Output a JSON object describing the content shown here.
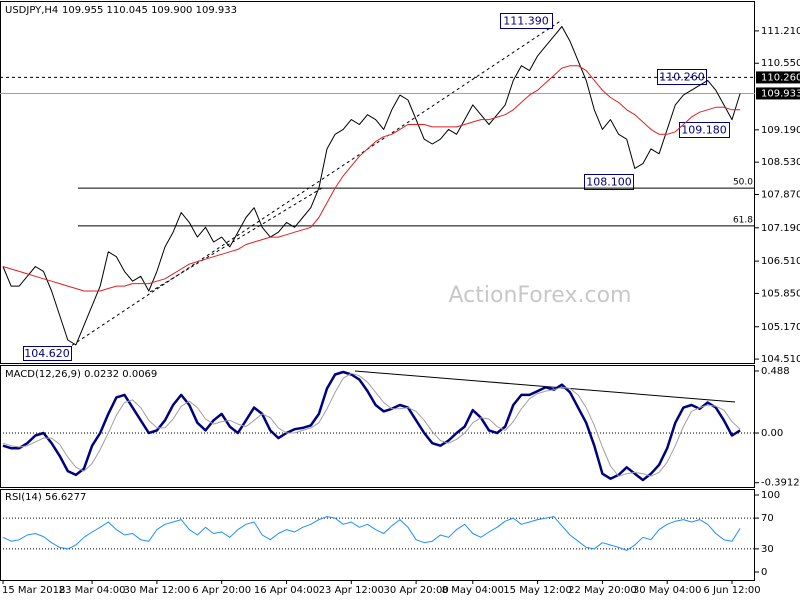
{
  "chart_data": [
    {
      "type": "line",
      "title": "USDJPY,H4",
      "subtitle": "109.955 110.045 109.900 109.933",
      "ylim": [
        104.43,
        111.8
      ],
      "yticks": [
        {
          "value": 111.21,
          "label": "111.210"
        },
        {
          "value": 110.55,
          "label": "110.550"
        },
        {
          "value": 109.19,
          "label": "109.190"
        },
        {
          "value": 108.53,
          "label": "108.530"
        },
        {
          "value": 107.87,
          "label": "107.870"
        },
        {
          "value": 107.19,
          "label": "107.190"
        },
        {
          "value": 106.51,
          "label": "106.510"
        },
        {
          "value": 105.85,
          "label": "105.850"
        },
        {
          "value": 105.17,
          "label": "105.170"
        },
        {
          "value": 104.51,
          "label": "104.510"
        }
      ],
      "series": [
        {
          "color": "#000000",
          "line_width": 1,
          "values": [
            106.4,
            106.0,
            106.0,
            106.2,
            106.4,
            106.3,
            105.9,
            105.4,
            104.9,
            104.8,
            105.2,
            105.6,
            106.0,
            106.7,
            106.6,
            106.3,
            106.1,
            106.2,
            105.9,
            106.3,
            106.8,
            107.1,
            107.5,
            107.3,
            107.0,
            107.2,
            106.9,
            107.0,
            106.8,
            107.1,
            107.4,
            107.6,
            107.2,
            107.0,
            107.1,
            107.3,
            107.2,
            107.4,
            107.6,
            108.0,
            108.8,
            109.1,
            109.2,
            109.4,
            109.3,
            109.5,
            109.4,
            109.2,
            109.6,
            109.9,
            109.8,
            109.4,
            109.0,
            108.9,
            109.0,
            109.2,
            109.1,
            109.4,
            109.7,
            109.5,
            109.3,
            109.5,
            109.7,
            110.2,
            110.5,
            110.4,
            110.7,
            110.9,
            111.1,
            111.3,
            111.0,
            110.6,
            110.2,
            109.6,
            109.2,
            109.4,
            109.1,
            109.0,
            108.4,
            108.5,
            108.8,
            108.7,
            109.2,
            109.7,
            109.9,
            110.0,
            110.1,
            110.2,
            110.0,
            109.7,
            109.4,
            109.933
          ]
        },
        {
          "color": "#e02020",
          "line_width": 1,
          "values": [
            106.4,
            106.35,
            106.3,
            106.25,
            106.2,
            106.15,
            106.1,
            106.05,
            106.0,
            105.95,
            105.9,
            105.9,
            105.9,
            105.95,
            106.0,
            106.0,
            106.05,
            106.05,
            106.05,
            106.1,
            106.15,
            106.25,
            106.35,
            106.45,
            106.5,
            106.55,
            106.6,
            106.65,
            106.7,
            106.75,
            106.85,
            106.9,
            106.95,
            107.0,
            107.0,
            107.05,
            107.1,
            107.15,
            107.2,
            107.4,
            107.7,
            108.0,
            108.25,
            108.45,
            108.65,
            108.8,
            108.95,
            109.05,
            109.1,
            109.2,
            109.3,
            109.3,
            109.3,
            109.25,
            109.25,
            109.25,
            109.25,
            109.3,
            109.35,
            109.4,
            109.4,
            109.45,
            109.5,
            109.6,
            109.75,
            109.9,
            110.0,
            110.15,
            110.3,
            110.45,
            110.5,
            110.5,
            110.4,
            110.2,
            110.0,
            109.85,
            109.75,
            109.6,
            109.5,
            109.35,
            109.2,
            109.1,
            109.1,
            109.15,
            109.3,
            109.45,
            109.55,
            109.6,
            109.65,
            109.65,
            109.6,
            109.6
          ]
        }
      ],
      "hlines": [
        {
          "value": 110.26,
          "label": "110.260",
          "style": "dashed"
        },
        {
          "value": 109.933,
          "label": "109.933",
          "style": "solid-gray"
        },
        {
          "value": 108.0,
          "label": "50.0",
          "style": "fib"
        },
        {
          "value": 107.23,
          "label": "61.8",
          "style": "fib"
        }
      ],
      "annotations": [
        "111.390",
        "110.260",
        "109.180",
        "108.100",
        "104.620"
      ],
      "watermark": "ActionForex.com"
    },
    {
      "type": "line",
      "title": "MACD(12,26,9) 0.0232 0.0069",
      "ylim": [
        -0.425,
        0.535
      ],
      "yticks": [
        0.488,
        {
          "value": 0,
          "label": "0.00"
        },
        -0.3912
      ],
      "series": [
        {
          "color": "#000080",
          "line_width": 2.5,
          "values": [
            -0.1,
            -0.12,
            -0.12,
            -0.08,
            -0.02,
            0.0,
            -0.08,
            -0.18,
            -0.3,
            -0.33,
            -0.28,
            -0.1,
            0.0,
            0.15,
            0.28,
            0.3,
            0.2,
            0.1,
            0.0,
            0.02,
            0.1,
            0.22,
            0.3,
            0.22,
            0.08,
            0.02,
            0.1,
            0.15,
            0.05,
            0.0,
            0.1,
            0.2,
            0.15,
            0.02,
            -0.04,
            0.0,
            0.03,
            0.04,
            0.06,
            0.15,
            0.35,
            0.46,
            0.48,
            0.46,
            0.42,
            0.33,
            0.22,
            0.17,
            0.19,
            0.22,
            0.2,
            0.1,
            0.0,
            -0.08,
            -0.1,
            -0.06,
            0.0,
            0.05,
            0.18,
            0.12,
            0.02,
            0.0,
            0.05,
            0.22,
            0.3,
            0.3,
            0.33,
            0.36,
            0.34,
            0.38,
            0.32,
            0.2,
            0.08,
            -0.1,
            -0.32,
            -0.36,
            -0.33,
            -0.27,
            -0.32,
            -0.37,
            -0.32,
            -0.25,
            -0.12,
            0.08,
            0.2,
            0.22,
            0.19,
            0.24,
            0.2,
            0.1,
            -0.02,
            0.02
          ]
        },
        {
          "color": "#a0a0a0",
          "line_width": 1,
          "values": [
            -0.08,
            -0.1,
            -0.11,
            -0.1,
            -0.07,
            -0.04,
            -0.04,
            -0.09,
            -0.19,
            -0.27,
            -0.3,
            -0.24,
            -0.13,
            0.0,
            0.14,
            0.24,
            0.26,
            0.2,
            0.1,
            0.04,
            0.04,
            0.11,
            0.21,
            0.25,
            0.2,
            0.11,
            0.07,
            0.09,
            0.1,
            0.07,
            0.05,
            0.1,
            0.15,
            0.12,
            0.04,
            0.0,
            0.0,
            0.02,
            0.04,
            0.08,
            0.19,
            0.32,
            0.43,
            0.47,
            0.45,
            0.4,
            0.32,
            0.24,
            0.19,
            0.19,
            0.2,
            0.17,
            0.1,
            0.01,
            -0.06,
            -0.08,
            -0.05,
            0.0,
            0.08,
            0.12,
            0.11,
            0.05,
            0.02,
            0.09,
            0.19,
            0.27,
            0.31,
            0.33,
            0.34,
            0.36,
            0.35,
            0.3,
            0.2,
            0.06,
            -0.11,
            -0.26,
            -0.34,
            -0.32,
            -0.31,
            -0.32,
            -0.34,
            -0.31,
            -0.23,
            -0.1,
            0.05,
            0.17,
            0.2,
            0.22,
            0.21,
            0.18,
            0.09,
            0.03
          ]
        }
      ],
      "hlines": [
        {
          "value": 0,
          "style": "dotted"
        }
      ]
    },
    {
      "type": "line",
      "title": "RSI(14) 56.6277",
      "ylim": [
        -10.4,
        107.8
      ],
      "yticks": [
        100,
        70,
        30,
        0
      ],
      "series": [
        {
          "color": "#1e90ff",
          "line_width": 1,
          "values": [
            45,
            40,
            42,
            48,
            50,
            46,
            38,
            32,
            30,
            35,
            45,
            52,
            58,
            65,
            55,
            48,
            50,
            42,
            40,
            55,
            62,
            65,
            68,
            55,
            48,
            58,
            50,
            52,
            45,
            55,
            62,
            65,
            48,
            42,
            50,
            55,
            52,
            58,
            62,
            68,
            72,
            70,
            62,
            65,
            58,
            62,
            55,
            50,
            60,
            68,
            58,
            42,
            38,
            40,
            48,
            45,
            55,
            62,
            50,
            45,
            52,
            58,
            66,
            70,
            62,
            65,
            68,
            70,
            72,
            60,
            48,
            40,
            32,
            30,
            38,
            35,
            32,
            28,
            35,
            45,
            42,
            55,
            62,
            66,
            68,
            65,
            68,
            62,
            50,
            42,
            40,
            56.6277
          ]
        }
      ],
      "hlines": [
        {
          "value": 70,
          "style": "dotted"
        },
        {
          "value": 30,
          "style": "dotted"
        }
      ],
      "categories": [
        "15 Mar 2018",
        null,
        null,
        null,
        null,
        null,
        null,
        null,
        null,
        null,
        null,
        "23 Mar 04:00",
        null,
        null,
        null,
        null,
        null,
        null,
        null,
        "30 Mar 12:00",
        null,
        null,
        null,
        null,
        null,
        null,
        null,
        "6 Apr 20:00",
        null,
        null,
        null,
        null,
        null,
        null,
        null,
        "16 Apr 04:00",
        null,
        null,
        null,
        null,
        null,
        null,
        null,
        "23 Apr 12:00",
        null,
        null,
        null,
        null,
        null,
        null,
        null,
        "30 Apr 20:00",
        null,
        null,
        null,
        null,
        null,
        null,
        "8 May 04:00",
        null,
        null,
        null,
        null,
        null,
        null,
        null,
        "15 May 12:00",
        null,
        null,
        null,
        null,
        null,
        null,
        null,
        "22 May 20:00",
        null,
        null,
        null,
        null,
        null,
        null,
        null,
        "30 May 04:00",
        null,
        null,
        null,
        null,
        null,
        null,
        null,
        "6 Jun 12:00",
        null
      ]
    }
  ]
}
